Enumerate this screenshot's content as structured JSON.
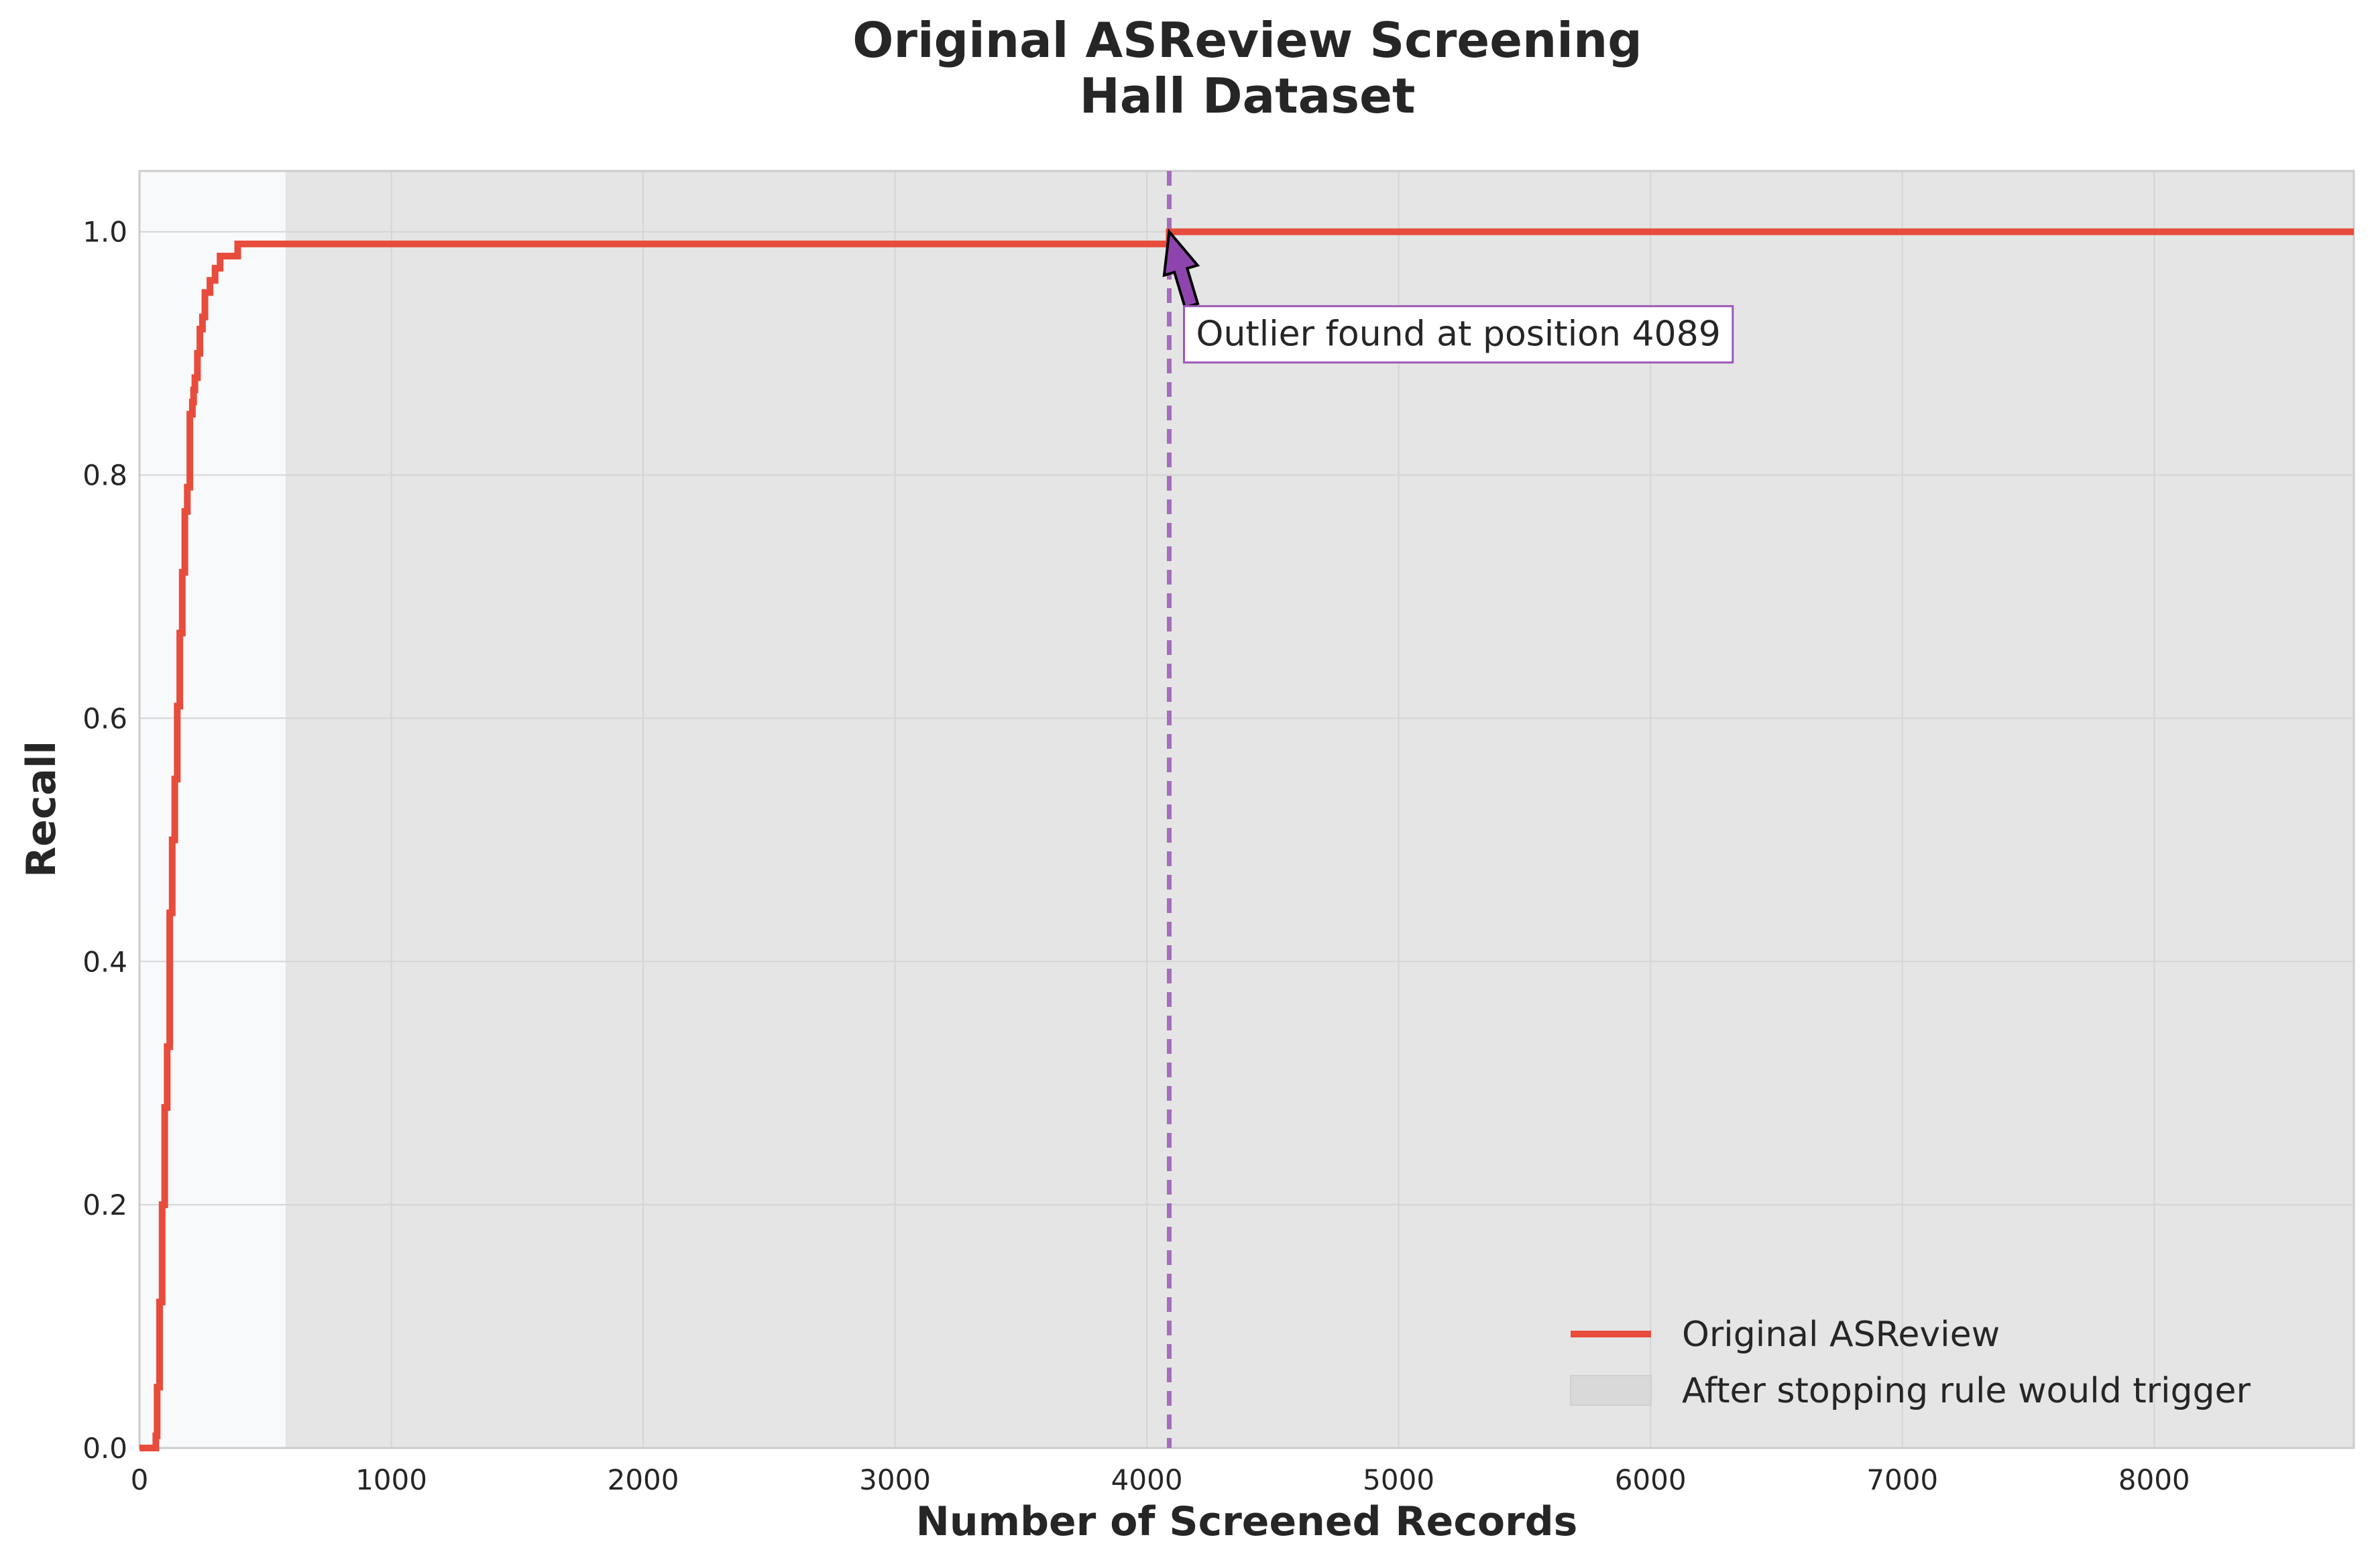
{
  "chart_data": {
    "type": "line",
    "title": "Original ASReview Screening",
    "subtitle": "Hall Dataset",
    "xlabel": "Number of Screened Records",
    "ylabel": "Recall",
    "xlim": [
      0,
      8793
    ],
    "ylim": [
      0,
      1.05
    ],
    "grid": true,
    "legend_placement": "lower-right",
    "x_ticks": [
      "0",
      "1000",
      "2000",
      "3000",
      "4000",
      "5000",
      "6000",
      "7000",
      "8000"
    ],
    "y_ticks": [
      "0.0",
      "0.2",
      "0.4",
      "0.6",
      "0.8",
      "1.0"
    ],
    "x_tick_values": [
      0,
      1000,
      2000,
      3000,
      4000,
      5000,
      6000,
      7000,
      8000
    ],
    "y_tick_values": [
      0,
      0.2,
      0.4,
      0.6,
      0.8,
      1.0
    ],
    "series": [
      {
        "name": "Original ASReview",
        "color": "#e74c3c",
        "x": [
          0,
          60,
          65,
          70,
          80,
          90,
          100,
          110,
          120,
          130,
          140,
          150,
          160,
          170,
          180,
          190,
          200,
          210,
          215,
          220,
          230,
          240,
          250,
          260,
          270,
          280,
          290,
          300,
          320,
          330,
          350,
          380,
          390,
          400,
          4088,
          4089,
          8793
        ],
        "y": [
          0,
          0,
          0.01,
          0.05,
          0.12,
          0.2,
          0.28,
          0.33,
          0.44,
          0.5,
          0.55,
          0.61,
          0.67,
          0.72,
          0.77,
          0.79,
          0.85,
          0.86,
          0.87,
          0.88,
          0.9,
          0.92,
          0.93,
          0.95,
          0.95,
          0.96,
          0.96,
          0.97,
          0.98,
          0.98,
          0.98,
          0.98,
          0.99,
          0.99,
          0.99,
          1.0,
          1.0
        ]
      }
    ],
    "shaded_regions": [
      {
        "name": "After stopping rule would trigger",
        "x_start": 580,
        "x_end": 8793,
        "color": "#d9d9d9"
      }
    ],
    "vertical_lines": [
      {
        "x": 4089,
        "color": "#9b59b6",
        "style": "dashed"
      }
    ],
    "annotations": [
      {
        "text": "Outlier found at position 4089",
        "x": 4089,
        "y": 1.0
      }
    ]
  }
}
